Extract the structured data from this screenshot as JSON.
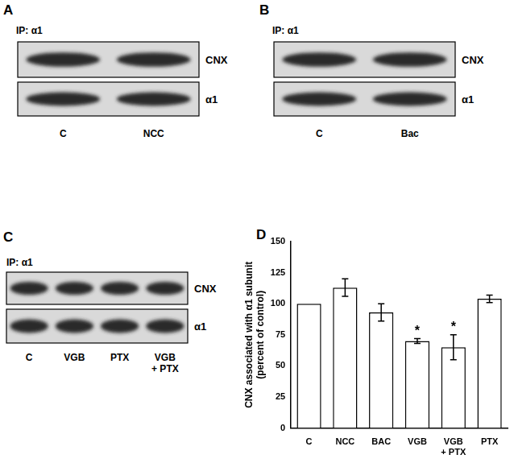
{
  "blots": [
    {
      "panel_label": "A",
      "ip": "IP: α1",
      "rows": [
        "CNX",
        "α1"
      ],
      "lanes": [
        "C",
        "NCC"
      ]
    },
    {
      "panel_label": "B",
      "ip": "IP: α1",
      "rows": [
        "CNX",
        "α1"
      ],
      "lanes": [
        "C",
        "Bac"
      ]
    },
    {
      "panel_label": "C",
      "ip": "IP: α1",
      "rows": [
        "CNX",
        "α1"
      ],
      "lanes": [
        "C",
        "VGB",
        "PTX",
        "VGB + PTX"
      ]
    }
  ],
  "chart_data": {
    "panel_label": "D",
    "type": "bar",
    "y_label": [
      "CNX associated with α1 subunit",
      "(percent of control)"
    ],
    "categories": [
      "C",
      "NCC",
      "BAC",
      "VGB",
      "VGB + PTX",
      "PTX"
    ],
    "values": [
      100,
      113,
      93,
      70,
      65,
      104
    ],
    "errors": [
      null,
      7,
      7,
      2,
      10,
      3
    ],
    "significance": [
      null,
      null,
      null,
      "*",
      "*",
      null
    ],
    "color": "#ffffff",
    "ylim": [
      0,
      150
    ],
    "yticks": [
      0,
      25,
      50,
      75,
      100,
      125,
      150
    ],
    "grid": false
  }
}
